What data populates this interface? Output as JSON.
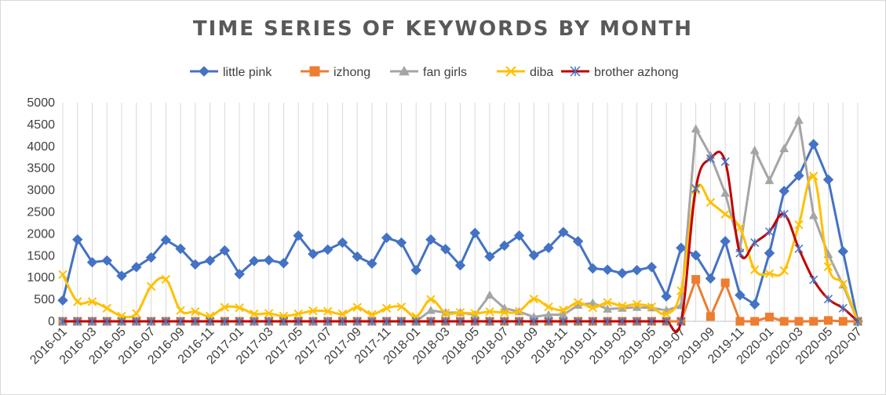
{
  "chart_data": {
    "type": "line",
    "title": "TIME SERIES OF KEYWORDS BY MONTH",
    "xlabel": "",
    "ylabel": "",
    "ylim": [
      0,
      5000
    ],
    "yticks": [
      0,
      500,
      1000,
      1500,
      2000,
      2500,
      3000,
      3500,
      4000,
      4500,
      5000
    ],
    "grid": "vertical",
    "legend": "top-center",
    "x": [
      "2016-01",
      "2016-02",
      "2016-03",
      "2016-04",
      "2016-05",
      "2016-06",
      "2016-07",
      "2016-08",
      "2016-09",
      "2016-10",
      "2016-11",
      "2016-12",
      "2017-01",
      "2017-02",
      "2017-03",
      "2017-04",
      "2017-05",
      "2017-06",
      "2017-07",
      "2017-08",
      "2017-09",
      "2017-10",
      "2017-11",
      "2017-12",
      "2018-01",
      "2018-02",
      "2018-03",
      "2018-04",
      "2018-05",
      "2018-06",
      "2018-07",
      "2018-08",
      "2018-09",
      "2018-10",
      "2018-11",
      "2018-12",
      "2019-01",
      "2019-02",
      "2019-03",
      "2019-04",
      "2019-05",
      "2019-06",
      "2019-07",
      "2019-08",
      "2019-09",
      "2019-10",
      "2019-11",
      "2019-12",
      "2020-01",
      "2020-02",
      "2020-03",
      "2020-04",
      "2020-05",
      "2020-06",
      "2020-07"
    ],
    "xticks": [
      "2016-01",
      "2016-03",
      "2016-05",
      "2016-07",
      "2016-09",
      "2016-11",
      "2017-01",
      "2017-03",
      "2017-05",
      "2017-07",
      "2017-09",
      "2017-11",
      "2018-01",
      "2018-03",
      "2018-05",
      "2018-07",
      "2018-09",
      "2018-11",
      "2019-01",
      "2019-03",
      "2019-05",
      "2019-07",
      "2019-09",
      "2019-11",
      "2020-01",
      "2020-03",
      "2020-05",
      "2020-07"
    ],
    "series": [
      {
        "name": "little pink",
        "color": "#4472c4",
        "marker": "diamond",
        "smooth": false,
        "values": [
          480,
          1870,
          1350,
          1390,
          1040,
          1240,
          1460,
          1860,
          1660,
          1300,
          1390,
          1620,
          1080,
          1380,
          1400,
          1330,
          1960,
          1540,
          1640,
          1800,
          1480,
          1320,
          1910,
          1800,
          1170,
          1870,
          1650,
          1280,
          2020,
          1480,
          1730,
          1960,
          1510,
          1680,
          2040,
          1830,
          1210,
          1180,
          1100,
          1170,
          1240,
          570,
          1680,
          1510,
          980,
          1830,
          600,
          390,
          1560,
          2980,
          3330,
          4050,
          3240,
          1600,
          0
        ]
      },
      {
        "name": "izhong",
        "color": "#ed7d31",
        "marker": "square",
        "smooth": false,
        "values": [
          0,
          0,
          0,
          0,
          0,
          0,
          0,
          0,
          0,
          0,
          0,
          0,
          0,
          0,
          0,
          0,
          0,
          0,
          0,
          0,
          0,
          0,
          0,
          0,
          0,
          0,
          0,
          0,
          0,
          0,
          0,
          0,
          0,
          0,
          0,
          0,
          0,
          0,
          0,
          0,
          0,
          0,
          0,
          960,
          110,
          880,
          0,
          0,
          100,
          0,
          0,
          0,
          20,
          0,
          0
        ]
      },
      {
        "name": "fan girls",
        "color": "#a5a5a5",
        "marker": "triangle",
        "smooth": false,
        "values": [
          0,
          0,
          0,
          0,
          0,
          0,
          0,
          0,
          0,
          0,
          0,
          0,
          0,
          0,
          0,
          0,
          0,
          0,
          0,
          0,
          0,
          0,
          0,
          0,
          0,
          250,
          200,
          200,
          150,
          600,
          300,
          220,
          100,
          150,
          150,
          370,
          420,
          280,
          300,
          320,
          310,
          250,
          360,
          4400,
          3790,
          2930,
          1660,
          3910,
          3220,
          3950,
          4600,
          2420,
          1530,
          830,
          0
        ]
      },
      {
        "name": "diba",
        "color": "#ffc000",
        "marker": "x",
        "smooth": true,
        "values": [
          1070,
          450,
          450,
          300,
          120,
          180,
          800,
          960,
          250,
          220,
          120,
          320,
          310,
          170,
          180,
          120,
          170,
          240,
          230,
          170,
          320,
          160,
          300,
          330,
          110,
          500,
          190,
          200,
          180,
          220,
          200,
          230,
          510,
          330,
          260,
          430,
          310,
          430,
          350,
          390,
          330,
          170,
          700,
          3000,
          2720,
          2450,
          2140,
          1180,
          1090,
          1160,
          2210,
          3320,
          1250,
          850,
          0
        ]
      },
      {
        "name": "brother azhong",
        "color": "#c00000",
        "marker": "asterisk",
        "markerColor": "#4472c4",
        "smooth": true,
        "values": [
          0,
          0,
          0,
          0,
          0,
          0,
          0,
          0,
          0,
          0,
          0,
          0,
          0,
          0,
          0,
          0,
          0,
          0,
          0,
          0,
          0,
          0,
          0,
          0,
          0,
          0,
          0,
          0,
          0,
          0,
          0,
          0,
          0,
          0,
          0,
          0,
          0,
          0,
          0,
          0,
          0,
          0,
          0,
          3040,
          3720,
          3650,
          1560,
          1800,
          2050,
          2450,
          1660,
          950,
          510,
          300,
          0
        ]
      }
    ]
  }
}
